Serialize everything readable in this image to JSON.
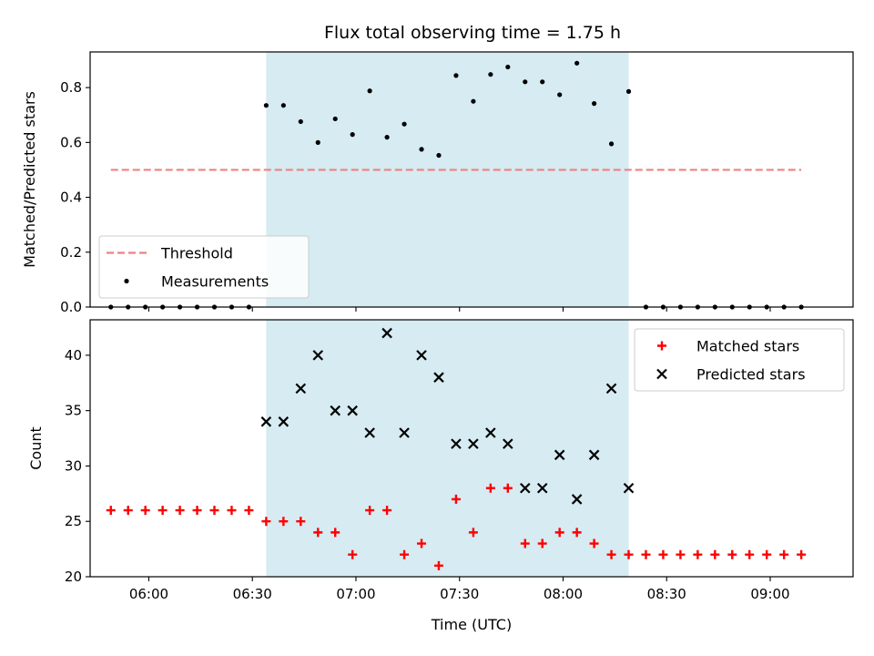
{
  "chart_data": [
    {
      "type": "scatter",
      "title": "Flux total observing time = 1.75 h",
      "xlabel": "",
      "ylabel": "Matched/Predicted stars",
      "xlim": [
        "05:43",
        "09:24"
      ],
      "ylim": [
        0,
        0.93
      ],
      "yticks": [
        0.0,
        0.2,
        0.4,
        0.6,
        0.8
      ],
      "xticks": [
        "06:00",
        "06:30",
        "07:00",
        "07:30",
        "08:00",
        "08:30",
        "09:00"
      ],
      "show_xtick_labels": false,
      "grid": false,
      "legend_position": "lower-left",
      "shaded_interval": {
        "start": "06:34",
        "end": "08:19",
        "color": "#add8e6"
      },
      "threshold": {
        "name": "Threshold",
        "value": 0.5,
        "x_start": "05:49",
        "x_end": "09:09",
        "color": "#f08080",
        "style": "dashed"
      },
      "series": [
        {
          "name": "Measurements",
          "marker": "dot",
          "color": "#000000",
          "points": [
            {
              "x": "05:49",
              "y": 0
            },
            {
              "x": "05:54",
              "y": 0
            },
            {
              "x": "05:59",
              "y": 0
            },
            {
              "x": "06:04",
              "y": 0
            },
            {
              "x": "06:09",
              "y": 0
            },
            {
              "x": "06:14",
              "y": 0
            },
            {
              "x": "06:19",
              "y": 0
            },
            {
              "x": "06:24",
              "y": 0
            },
            {
              "x": "06:29",
              "y": 0
            },
            {
              "x": "06:34",
              "y": 0.735
            },
            {
              "x": "06:39",
              "y": 0.735
            },
            {
              "x": "06:44",
              "y": 0.676
            },
            {
              "x": "06:49",
              "y": 0.6
            },
            {
              "x": "06:54",
              "y": 0.686
            },
            {
              "x": "06:59",
              "y": 0.629
            },
            {
              "x": "07:04",
              "y": 0.788
            },
            {
              "x": "07:09",
              "y": 0.619
            },
            {
              "x": "07:14",
              "y": 0.667
            },
            {
              "x": "07:19",
              "y": 0.575
            },
            {
              "x": "07:24",
              "y": 0.553
            },
            {
              "x": "07:29",
              "y": 0.844
            },
            {
              "x": "07:34",
              "y": 0.75
            },
            {
              "x": "07:39",
              "y": 0.848
            },
            {
              "x": "07:44",
              "y": 0.875
            },
            {
              "x": "07:49",
              "y": 0.821
            },
            {
              "x": "07:54",
              "y": 0.821
            },
            {
              "x": "07:59",
              "y": 0.774
            },
            {
              "x": "08:04",
              "y": 0.889
            },
            {
              "x": "08:09",
              "y": 0.742
            },
            {
              "x": "08:14",
              "y": 0.595
            },
            {
              "x": "08:19",
              "y": 0.786
            },
            {
              "x": "08:24",
              "y": 0
            },
            {
              "x": "08:29",
              "y": 0
            },
            {
              "x": "08:34",
              "y": 0
            },
            {
              "x": "08:39",
              "y": 0
            },
            {
              "x": "08:44",
              "y": 0
            },
            {
              "x": "08:49",
              "y": 0
            },
            {
              "x": "08:54",
              "y": 0
            },
            {
              "x": "08:59",
              "y": 0
            },
            {
              "x": "09:04",
              "y": 0
            },
            {
              "x": "09:09",
              "y": 0
            }
          ]
        }
      ]
    },
    {
      "type": "scatter",
      "title": "",
      "xlabel": "Time (UTC)",
      "ylabel": "Count",
      "xlim": [
        "05:43",
        "09:24"
      ],
      "ylim": [
        20,
        43.2
      ],
      "yticks": [
        20,
        25,
        30,
        35,
        40
      ],
      "xticks": [
        "06:00",
        "06:30",
        "07:00",
        "07:30",
        "08:00",
        "08:30",
        "09:00"
      ],
      "show_xtick_labels": true,
      "grid": false,
      "legend_position": "top-right",
      "shaded_interval": {
        "start": "06:34",
        "end": "08:19",
        "color": "#add8e6"
      },
      "series": [
        {
          "name": "Matched stars",
          "marker": "plus",
          "color": "#ff0000",
          "points": [
            {
              "x": "05:49",
              "y": 26
            },
            {
              "x": "05:54",
              "y": 26
            },
            {
              "x": "05:59",
              "y": 26
            },
            {
              "x": "06:04",
              "y": 26
            },
            {
              "x": "06:09",
              "y": 26
            },
            {
              "x": "06:14",
              "y": 26
            },
            {
              "x": "06:19",
              "y": 26
            },
            {
              "x": "06:24",
              "y": 26
            },
            {
              "x": "06:29",
              "y": 26
            },
            {
              "x": "06:34",
              "y": 25
            },
            {
              "x": "06:39",
              "y": 25
            },
            {
              "x": "06:44",
              "y": 25
            },
            {
              "x": "06:49",
              "y": 24
            },
            {
              "x": "06:54",
              "y": 24
            },
            {
              "x": "06:59",
              "y": 22
            },
            {
              "x": "07:04",
              "y": 26
            },
            {
              "x": "07:09",
              "y": 26
            },
            {
              "x": "07:14",
              "y": 22
            },
            {
              "x": "07:19",
              "y": 23
            },
            {
              "x": "07:24",
              "y": 21
            },
            {
              "x": "07:29",
              "y": 27
            },
            {
              "x": "07:34",
              "y": 24
            },
            {
              "x": "07:39",
              "y": 28
            },
            {
              "x": "07:44",
              "y": 28
            },
            {
              "x": "07:49",
              "y": 23
            },
            {
              "x": "07:54",
              "y": 23
            },
            {
              "x": "07:59",
              "y": 24
            },
            {
              "x": "08:04",
              "y": 24
            },
            {
              "x": "08:09",
              "y": 23
            },
            {
              "x": "08:14",
              "y": 22
            },
            {
              "x": "08:19",
              "y": 22
            },
            {
              "x": "08:24",
              "y": 22
            },
            {
              "x": "08:29",
              "y": 22
            },
            {
              "x": "08:34",
              "y": 22
            },
            {
              "x": "08:39",
              "y": 22
            },
            {
              "x": "08:44",
              "y": 22
            },
            {
              "x": "08:49",
              "y": 22
            },
            {
              "x": "08:54",
              "y": 22
            },
            {
              "x": "08:59",
              "y": 22
            },
            {
              "x": "09:04",
              "y": 22
            },
            {
              "x": "09:09",
              "y": 22
            }
          ]
        },
        {
          "name": "Predicted stars",
          "marker": "x",
          "color": "#000000",
          "points": [
            {
              "x": "06:34",
              "y": 34
            },
            {
              "x": "06:39",
              "y": 34
            },
            {
              "x": "06:44",
              "y": 37
            },
            {
              "x": "06:49",
              "y": 40
            },
            {
              "x": "06:54",
              "y": 35
            },
            {
              "x": "06:59",
              "y": 35
            },
            {
              "x": "07:04",
              "y": 33
            },
            {
              "x": "07:09",
              "y": 42
            },
            {
              "x": "07:14",
              "y": 33
            },
            {
              "x": "07:19",
              "y": 40
            },
            {
              "x": "07:24",
              "y": 38
            },
            {
              "x": "07:29",
              "y": 32
            },
            {
              "x": "07:34",
              "y": 32
            },
            {
              "x": "07:39",
              "y": 33
            },
            {
              "x": "07:44",
              "y": 32
            },
            {
              "x": "07:49",
              "y": 28
            },
            {
              "x": "07:54",
              "y": 28
            },
            {
              "x": "07:59",
              "y": 31
            },
            {
              "x": "08:04",
              "y": 27
            },
            {
              "x": "08:09",
              "y": 31
            },
            {
              "x": "08:14",
              "y": 37
            },
            {
              "x": "08:19",
              "y": 28
            }
          ]
        }
      ]
    }
  ]
}
